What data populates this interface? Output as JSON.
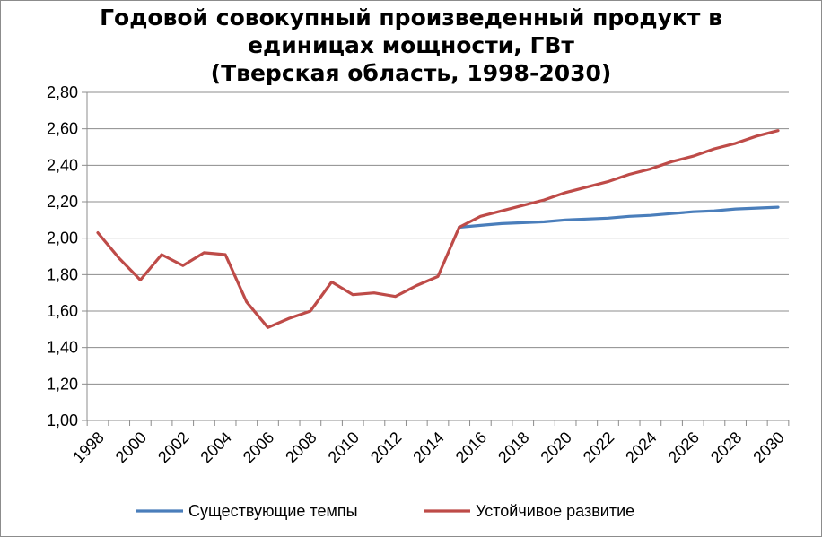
{
  "chart_data": {
    "type": "line",
    "title_lines": [
      "Годовой совокупный произведенный продукт в",
      "единицах мощности, ГВт",
      "(Тверская область, 1998-2030)"
    ],
    "ylim": [
      1.0,
      2.8
    ],
    "yticks": [
      "1,00",
      "1,20",
      "1,40",
      "1,60",
      "1,80",
      "2,00",
      "2,20",
      "2,40",
      "2,60",
      "2,80"
    ],
    "ytick_values": [
      1.0,
      1.2,
      1.4,
      1.6,
      1.8,
      2.0,
      2.2,
      2.4,
      2.6,
      2.8
    ],
    "xlim": [
      1998,
      2030
    ],
    "xtick_labels": [
      "1998",
      "2000",
      "2002",
      "2004",
      "2006",
      "2008",
      "2010",
      "2012",
      "2014",
      "2016",
      "2018",
      "2020",
      "2022",
      "2024",
      "2026",
      "2028",
      "2030"
    ],
    "xtick_values": [
      1998,
      2000,
      2002,
      2004,
      2006,
      2008,
      2010,
      2012,
      2014,
      2016,
      2018,
      2020,
      2022,
      2024,
      2026,
      2028,
      2030
    ],
    "grid": true,
    "legend_position": "bottom",
    "series": [
      {
        "name": "Существующие темпы",
        "color": "#4a7ebb",
        "x": [
          2015,
          2016,
          2017,
          2018,
          2019,
          2020,
          2021,
          2022,
          2023,
          2024,
          2025,
          2026,
          2027,
          2028,
          2029,
          2030
        ],
        "y": [
          2.06,
          2.07,
          2.08,
          2.085,
          2.09,
          2.1,
          2.105,
          2.11,
          2.12,
          2.125,
          2.135,
          2.145,
          2.15,
          2.16,
          2.165,
          2.17
        ]
      },
      {
        "name": "Устойчивое развитие",
        "color": "#be4b48",
        "x": [
          1998,
          1999,
          2000,
          2001,
          2002,
          2003,
          2004,
          2005,
          2006,
          2007,
          2008,
          2009,
          2010,
          2011,
          2012,
          2013,
          2014,
          2015,
          2016,
          2017,
          2018,
          2019,
          2020,
          2021,
          2022,
          2023,
          2024,
          2025,
          2026,
          2027,
          2028,
          2029,
          2030
        ],
        "y": [
          2.03,
          1.89,
          1.77,
          1.91,
          1.85,
          1.92,
          1.91,
          1.65,
          1.51,
          1.56,
          1.6,
          1.76,
          1.69,
          1.7,
          1.68,
          1.74,
          1.79,
          2.06,
          2.12,
          2.15,
          2.18,
          2.21,
          2.25,
          2.28,
          2.31,
          2.35,
          2.38,
          2.42,
          2.45,
          2.49,
          2.52,
          2.56,
          2.59
        ]
      }
    ]
  }
}
